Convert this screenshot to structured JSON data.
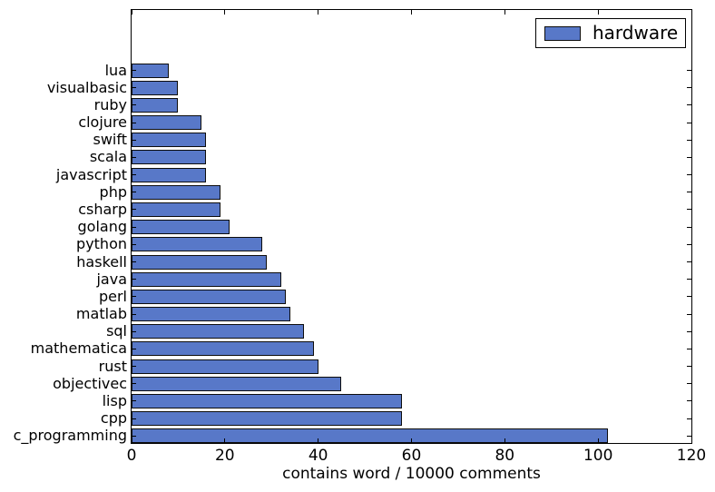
{
  "chart_data": {
    "type": "bar",
    "orientation": "horizontal",
    "title": "",
    "xlabel": "contains word / 10000 comments",
    "ylabel": "",
    "legend_label": "hardware",
    "legend_position": "upper right",
    "categories": [
      "lua",
      "visualbasic",
      "ruby",
      "clojure",
      "swift",
      "scala",
      "javascript",
      "php",
      "csharp",
      "golang",
      "python",
      "haskell",
      "java",
      "perl",
      "matlab",
      "sql",
      "mathematica",
      "rust",
      "objectivec",
      "lisp",
      "cpp",
      "c_programming"
    ],
    "values": [
      8,
      10,
      10,
      15,
      16,
      16,
      16,
      19,
      19,
      21,
      28,
      29,
      32,
      33,
      34,
      37,
      39,
      40,
      45,
      58,
      58,
      102
    ],
    "xlim": [
      0,
      120
    ],
    "xticks": [
      0,
      20,
      40,
      60,
      80,
      100,
      120
    ],
    "grid": false,
    "bar_color": "#5878c8",
    "bar_edge_color": "#0d0d0d",
    "axis_color": "#000000",
    "background_color": "#ffffff"
  }
}
